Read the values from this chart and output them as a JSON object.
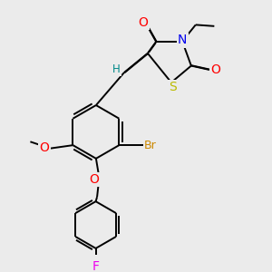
{
  "bg_color": "#ebebeb",
  "bond_color": "#000000",
  "atom_colors": {
    "O": "#ff0000",
    "N": "#0000ee",
    "S": "#bbbb00",
    "Br": "#cc8800",
    "F": "#ee00ee",
    "H": "#008888",
    "C": "#000000"
  },
  "line_width": 1.4,
  "font_size": 8.5
}
